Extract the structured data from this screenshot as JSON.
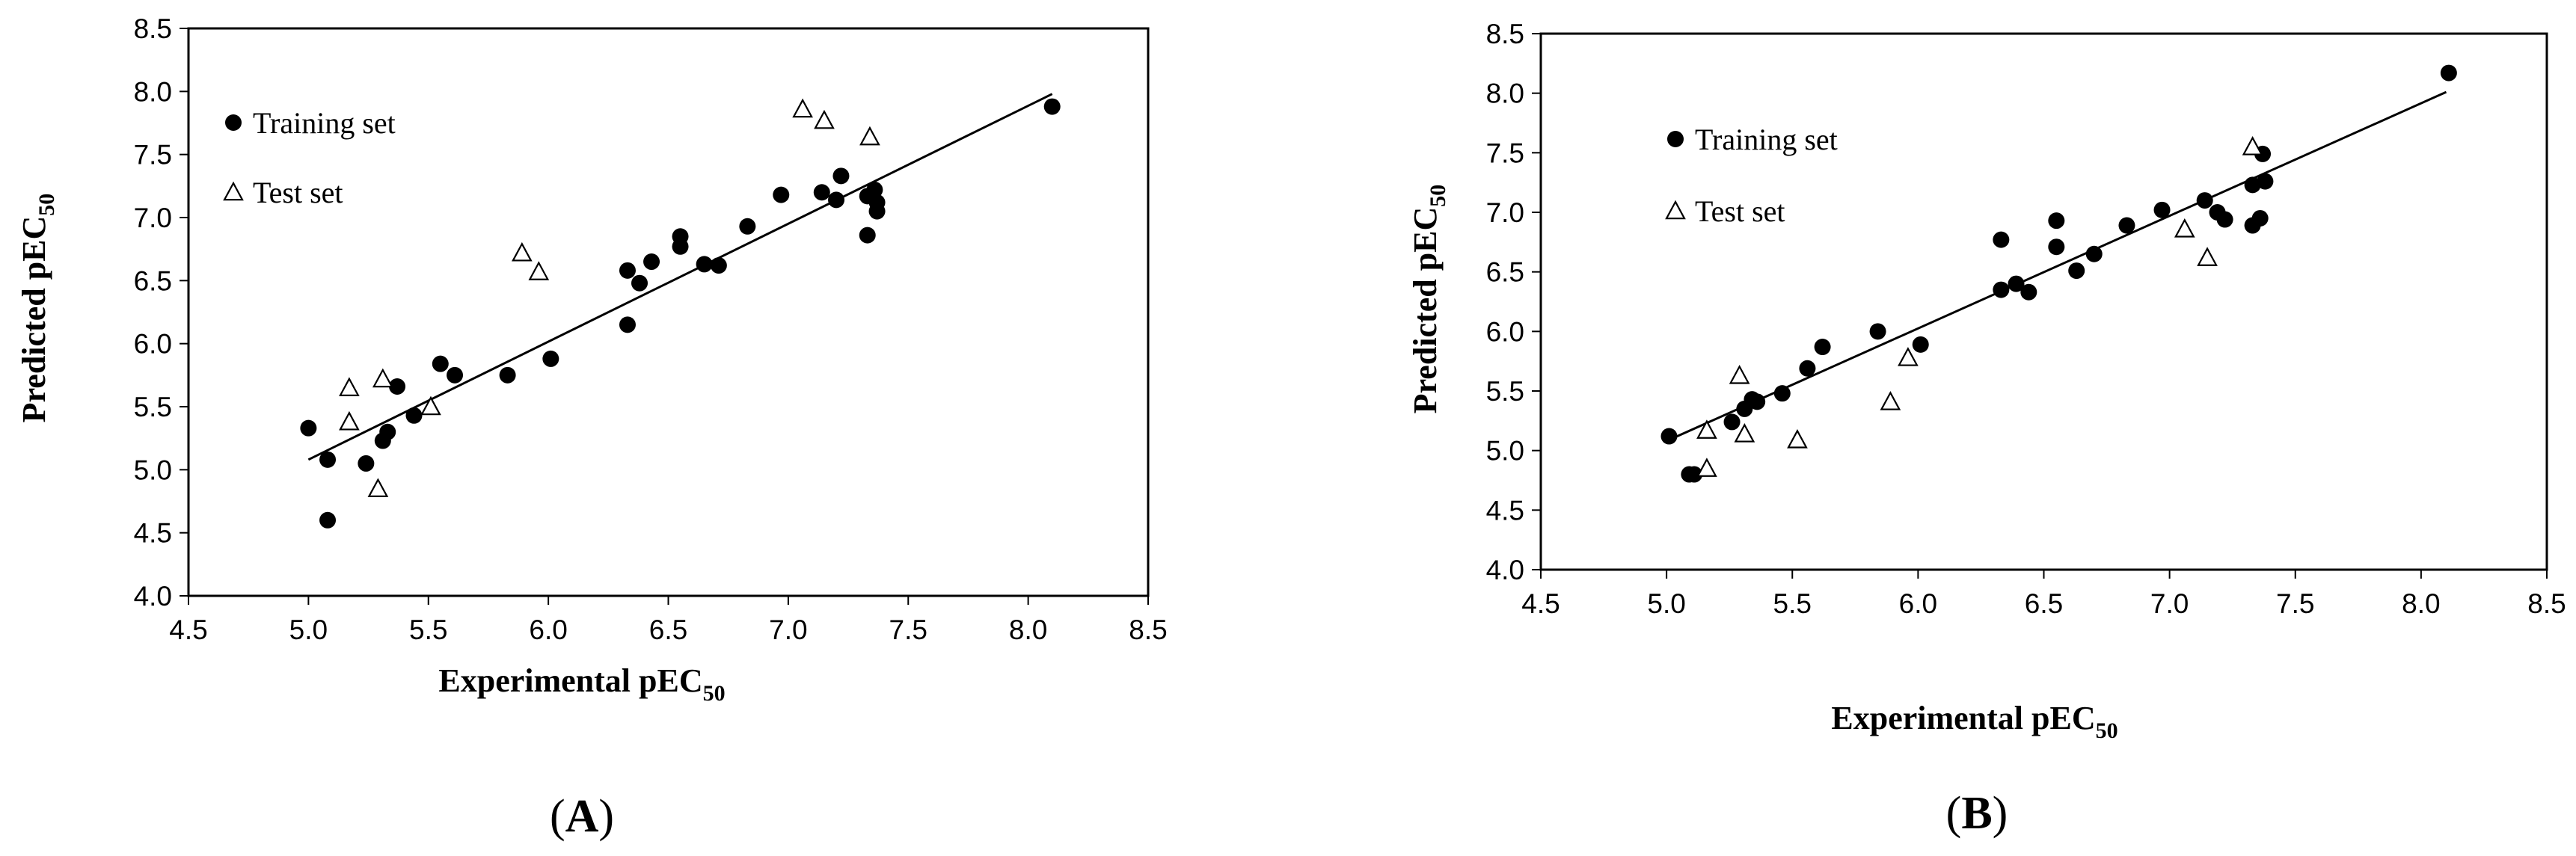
{
  "chart_data": [
    {
      "type": "scatter",
      "panel_label": "(A)",
      "panel_letter": "A",
      "xlabel": "Experimental  pEC",
      "xlabel_sub": "50",
      "ylabel": "Predicted pEC",
      "ylabel_sub": "50",
      "xlim": [
        4.5,
        8.5
      ],
      "ylim": [
        4.0,
        8.5
      ],
      "xticks": [
        "4.5",
        "5.0",
        "5.5",
        "6.0",
        "6.5",
        "7.0",
        "7.5",
        "8.0",
        "8.5"
      ],
      "yticks": [
        "4.0",
        "4.5",
        "5.0",
        "5.5",
        "6.0",
        "6.5",
        "7.0",
        "7.5",
        "8.0",
        "8.5"
      ],
      "grid": false,
      "legend_position": "top-left",
      "series": [
        {
          "name": "Training set",
          "marker": "filled-circle",
          "points": [
            [
              5.0,
              5.33
            ],
            [
              5.08,
              5.08
            ],
            [
              5.08,
              4.6
            ],
            [
              5.24,
              5.05
            ],
            [
              5.31,
              5.23
            ],
            [
              5.33,
              5.3
            ],
            [
              5.37,
              5.66
            ],
            [
              5.44,
              5.43
            ],
            [
              5.55,
              5.84
            ],
            [
              5.61,
              5.75
            ],
            [
              5.83,
              5.75
            ],
            [
              6.01,
              5.88
            ],
            [
              6.33,
              6.58
            ],
            [
              6.33,
              6.15
            ],
            [
              6.38,
              6.48
            ],
            [
              6.43,
              6.65
            ],
            [
              6.55,
              6.85
            ],
            [
              6.55,
              6.77
            ],
            [
              6.65,
              6.63
            ],
            [
              6.71,
              6.62
            ],
            [
              6.83,
              6.93
            ],
            [
              6.97,
              7.18
            ],
            [
              7.14,
              7.2
            ],
            [
              7.2,
              7.14
            ],
            [
              7.22,
              7.33
            ],
            [
              7.33,
              7.17
            ],
            [
              7.33,
              6.86
            ],
            [
              7.36,
              7.22
            ],
            [
              7.37,
              7.05
            ],
            [
              7.37,
              7.12
            ],
            [
              8.1,
              7.88
            ]
          ]
        },
        {
          "name": "Test set",
          "marker": "open-triangle",
          "points": [
            [
              5.17,
              5.65
            ],
            [
              5.17,
              5.38
            ],
            [
              5.29,
              4.85
            ],
            [
              5.31,
              5.72
            ],
            [
              5.51,
              5.5
            ],
            [
              5.89,
              6.72
            ],
            [
              5.96,
              6.57
            ],
            [
              7.06,
              7.86
            ],
            [
              7.15,
              7.77
            ],
            [
              7.34,
              7.64
            ]
          ]
        }
      ],
      "regression_line": {
        "x": [
          5.0,
          8.1
        ],
        "y": [
          5.08,
          7.98
        ]
      }
    },
    {
      "type": "scatter",
      "panel_label": "(B)",
      "panel_letter": "B",
      "xlabel": "Experimental  pEC",
      "xlabel_sub": "50",
      "ylabel": "Predicted pEC",
      "ylabel_sub": "50",
      "xlim": [
        4.5,
        8.5
      ],
      "ylim": [
        4.0,
        8.5
      ],
      "xticks": [
        "4.5",
        "5.0",
        "5.5",
        "6.0",
        "6.5",
        "7.0",
        "7.5",
        "8.0",
        "8.5"
      ],
      "yticks": [
        "4.0",
        "4.5",
        "5.0",
        "5.5",
        "6.0",
        "6.5",
        "7.0",
        "7.5",
        "8.0",
        "8.5"
      ],
      "grid": false,
      "legend_position": "top-left",
      "series": [
        {
          "name": "Training set",
          "marker": "filled-circle",
          "points": [
            [
              5.01,
              5.12
            ],
            [
              5.09,
              4.8
            ],
            [
              5.11,
              4.8
            ],
            [
              5.26,
              5.24
            ],
            [
              5.31,
              5.35
            ],
            [
              5.34,
              5.43
            ],
            [
              5.36,
              5.41
            ],
            [
              5.46,
              5.48
            ],
            [
              5.56,
              5.69
            ],
            [
              5.62,
              5.87
            ],
            [
              5.84,
              6.0
            ],
            [
              6.01,
              5.89
            ],
            [
              6.33,
              6.35
            ],
            [
              6.33,
              6.77
            ],
            [
              6.39,
              6.4
            ],
            [
              6.44,
              6.33
            ],
            [
              6.55,
              6.71
            ],
            [
              6.55,
              6.93
            ],
            [
              6.63,
              6.51
            ],
            [
              6.7,
              6.65
            ],
            [
              6.83,
              6.89
            ],
            [
              6.97,
              7.02
            ],
            [
              7.14,
              7.1
            ],
            [
              7.19,
              7.0
            ],
            [
              7.22,
              6.94
            ],
            [
              7.33,
              6.89
            ],
            [
              7.33,
              7.23
            ],
            [
              7.36,
              6.95
            ],
            [
              7.37,
              7.49
            ],
            [
              7.38,
              7.26
            ],
            [
              8.11,
              8.17
            ]
          ]
        },
        {
          "name": "Test set",
          "marker": "open-triangle",
          "points": [
            [
              5.16,
              5.17
            ],
            [
              5.16,
              4.85
            ],
            [
              5.29,
              5.63
            ],
            [
              5.31,
              5.14
            ],
            [
              5.52,
              5.09
            ],
            [
              5.89,
              5.41
            ],
            [
              5.96,
              5.78
            ],
            [
              7.06,
              6.86
            ],
            [
              7.15,
              6.62
            ],
            [
              7.33,
              7.55
            ]
          ]
        }
      ],
      "regression_line": {
        "x": [
          5.0,
          8.1
        ],
        "y": [
          5.08,
          8.01
        ]
      }
    }
  ]
}
